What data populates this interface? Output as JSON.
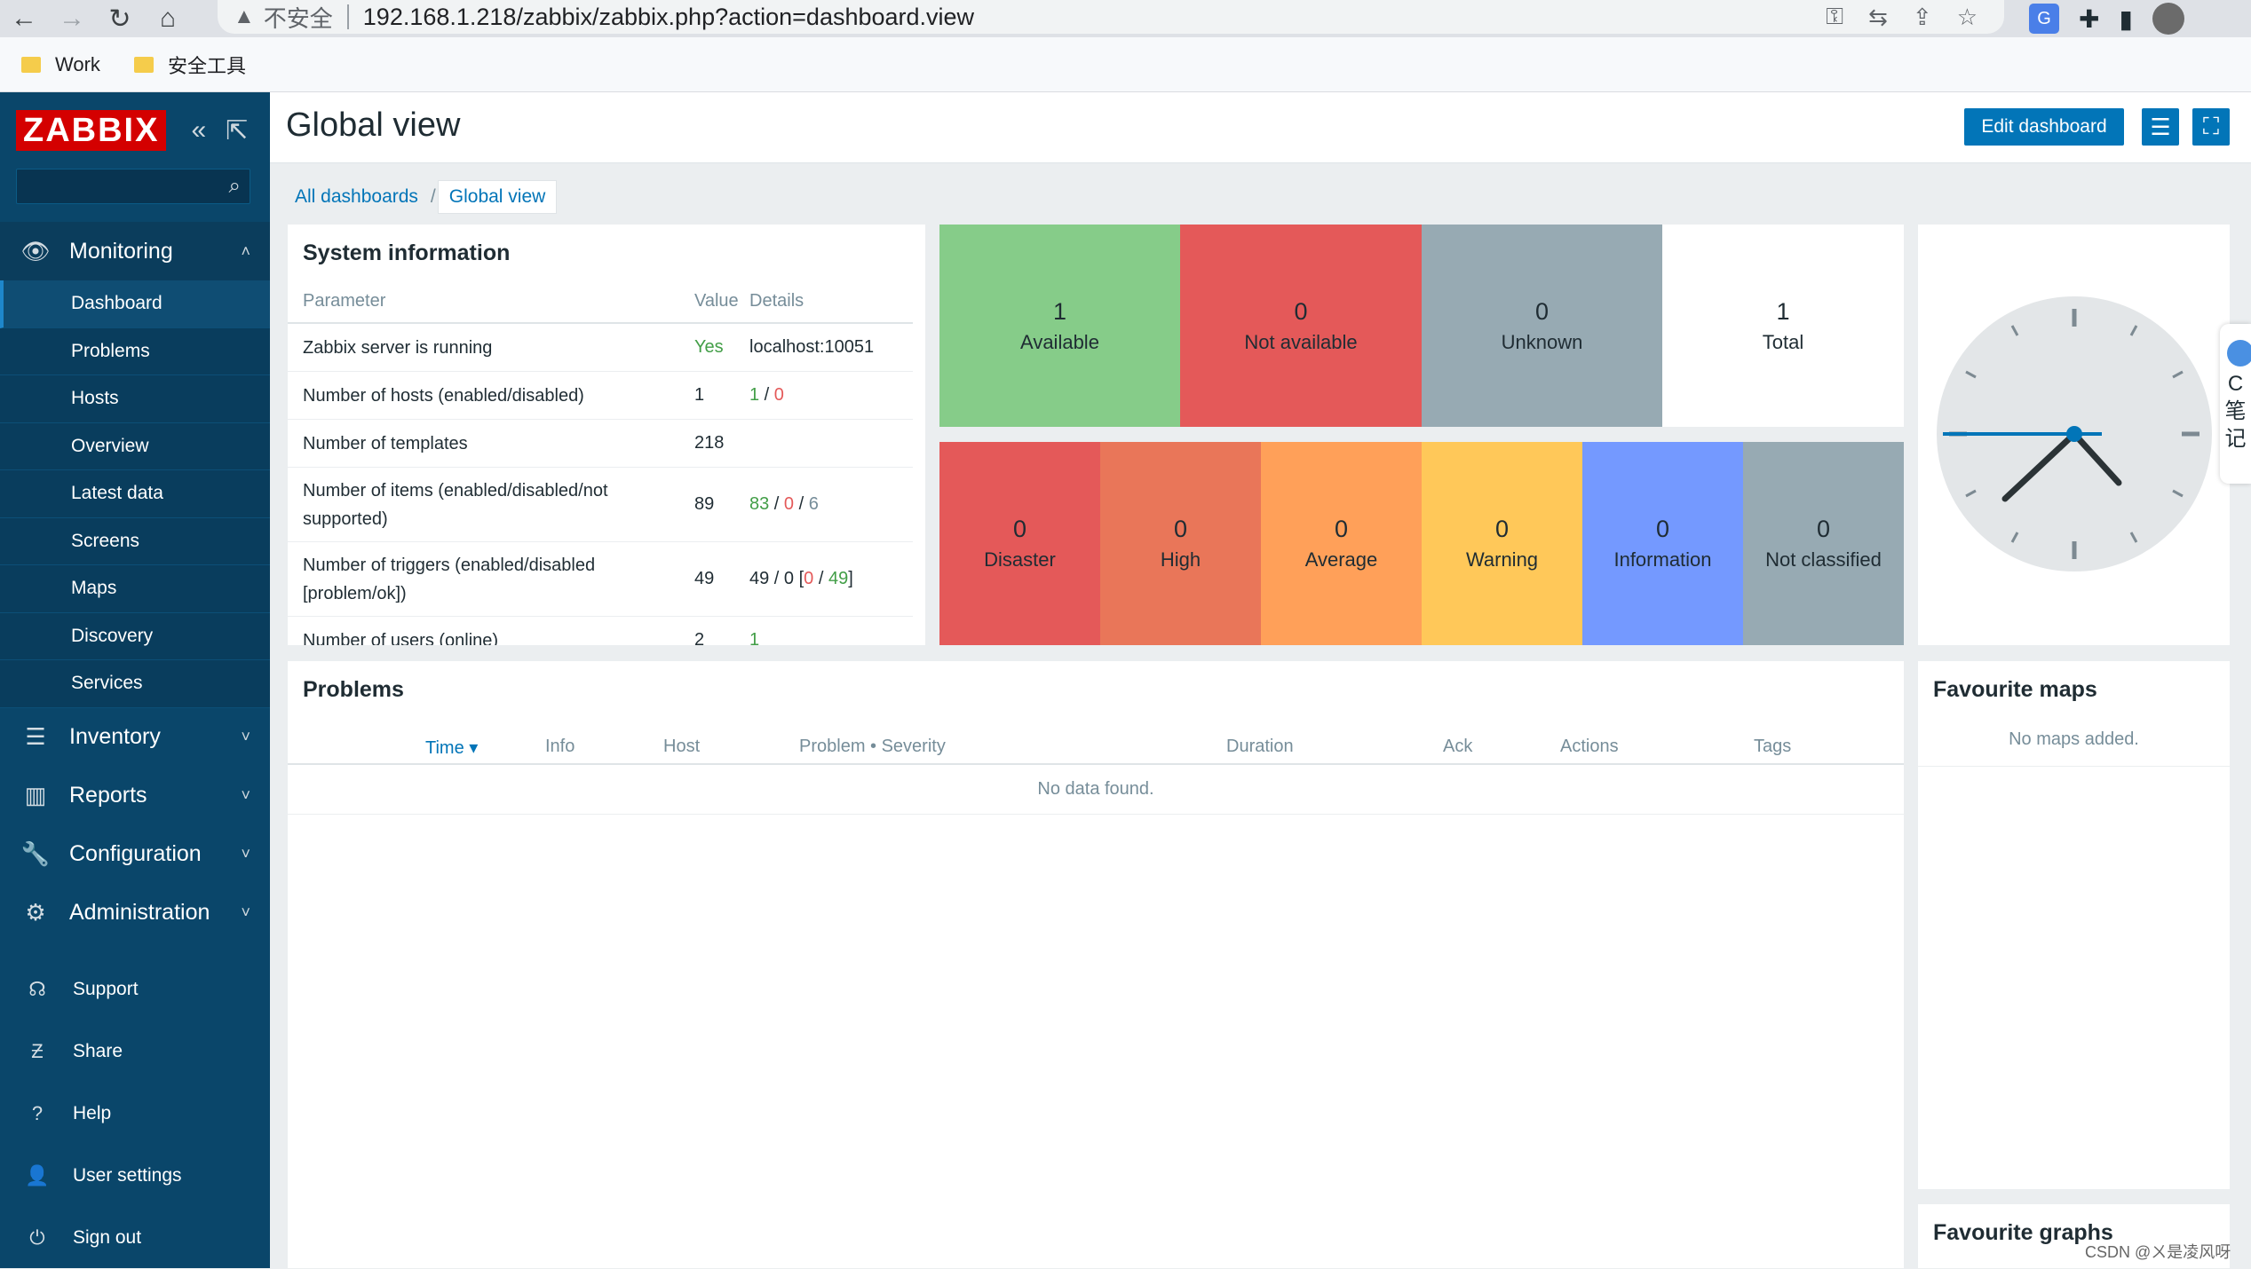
{
  "browser": {
    "security_label": "不安全",
    "url": "192.168.1.218/zabbix/zabbix.php?action=dashboard.view",
    "bookmarks": [
      "Work",
      "安全工具"
    ]
  },
  "sidebar": {
    "logo": "ZABBIX",
    "search_placeholder": "",
    "monitoring": {
      "label": "Monitoring",
      "items": [
        "Dashboard",
        "Problems",
        "Hosts",
        "Overview",
        "Latest data",
        "Screens",
        "Maps",
        "Discovery",
        "Services"
      ]
    },
    "sections": [
      "Inventory",
      "Reports",
      "Configuration",
      "Administration"
    ],
    "utilities": [
      "Support",
      "Share",
      "Help",
      "User settings",
      "Sign out"
    ]
  },
  "header": {
    "title": "Global view",
    "edit_label": "Edit dashboard"
  },
  "breadcrumbs": [
    "All dashboards",
    "Global view"
  ],
  "system_info": {
    "title": "System information",
    "columns": [
      "Parameter",
      "Value",
      "Details"
    ],
    "rows": [
      {
        "param": "Zabbix server is running",
        "value": "Yes",
        "details": "localhost:10051"
      },
      {
        "param": "Number of hosts (enabled/disabled)",
        "value": "1",
        "d1": "1",
        "d2": "0"
      },
      {
        "param": "Number of templates",
        "value": "218"
      },
      {
        "param": "Number of items (enabled/disabled/not supported)",
        "value": "89",
        "d1": "83",
        "d2": "0",
        "d3": "6"
      },
      {
        "param": "Number of triggers (enabled/disabled [problem/ok])",
        "value": "49",
        "d1": "49",
        "d2": "0",
        "d3": "0",
        "d4": "49"
      },
      {
        "param": "Number of users (online)",
        "value": "2",
        "d1": "1"
      }
    ]
  },
  "host_availability": [
    {
      "count": "1",
      "label": "Available",
      "color": "#86cc89"
    },
    {
      "count": "0",
      "label": "Not available",
      "color": "#e45959"
    },
    {
      "count": "0",
      "label": "Unknown",
      "color": "#97aab3"
    },
    {
      "count": "1",
      "label": "Total",
      "color": "#ffffff"
    }
  ],
  "problems_by_severity": [
    {
      "count": "0",
      "label": "Disaster",
      "color": "#e45959"
    },
    {
      "count": "0",
      "label": "High",
      "color": "#e97659"
    },
    {
      "count": "0",
      "label": "Average",
      "color": "#ffa059"
    },
    {
      "count": "0",
      "label": "Warning",
      "color": "#ffc859"
    },
    {
      "count": "0",
      "label": "Information",
      "color": "#7499ff"
    },
    {
      "count": "0",
      "label": "Not classified",
      "color": "#97aab3"
    }
  ],
  "problems": {
    "title": "Problems",
    "columns": [
      "Time ▾",
      "Info",
      "Host",
      "Problem • Severity",
      "Duration",
      "Ack",
      "Actions",
      "Tags"
    ],
    "empty": "No data found."
  },
  "favourite_maps": {
    "title": "Favourite maps",
    "empty": "No maps added."
  },
  "favourite_graphs": {
    "title": "Favourite graphs"
  },
  "side_note_text": "C\n笔\n记",
  "watermark": "CSDN @ㄨ是凌风呀"
}
